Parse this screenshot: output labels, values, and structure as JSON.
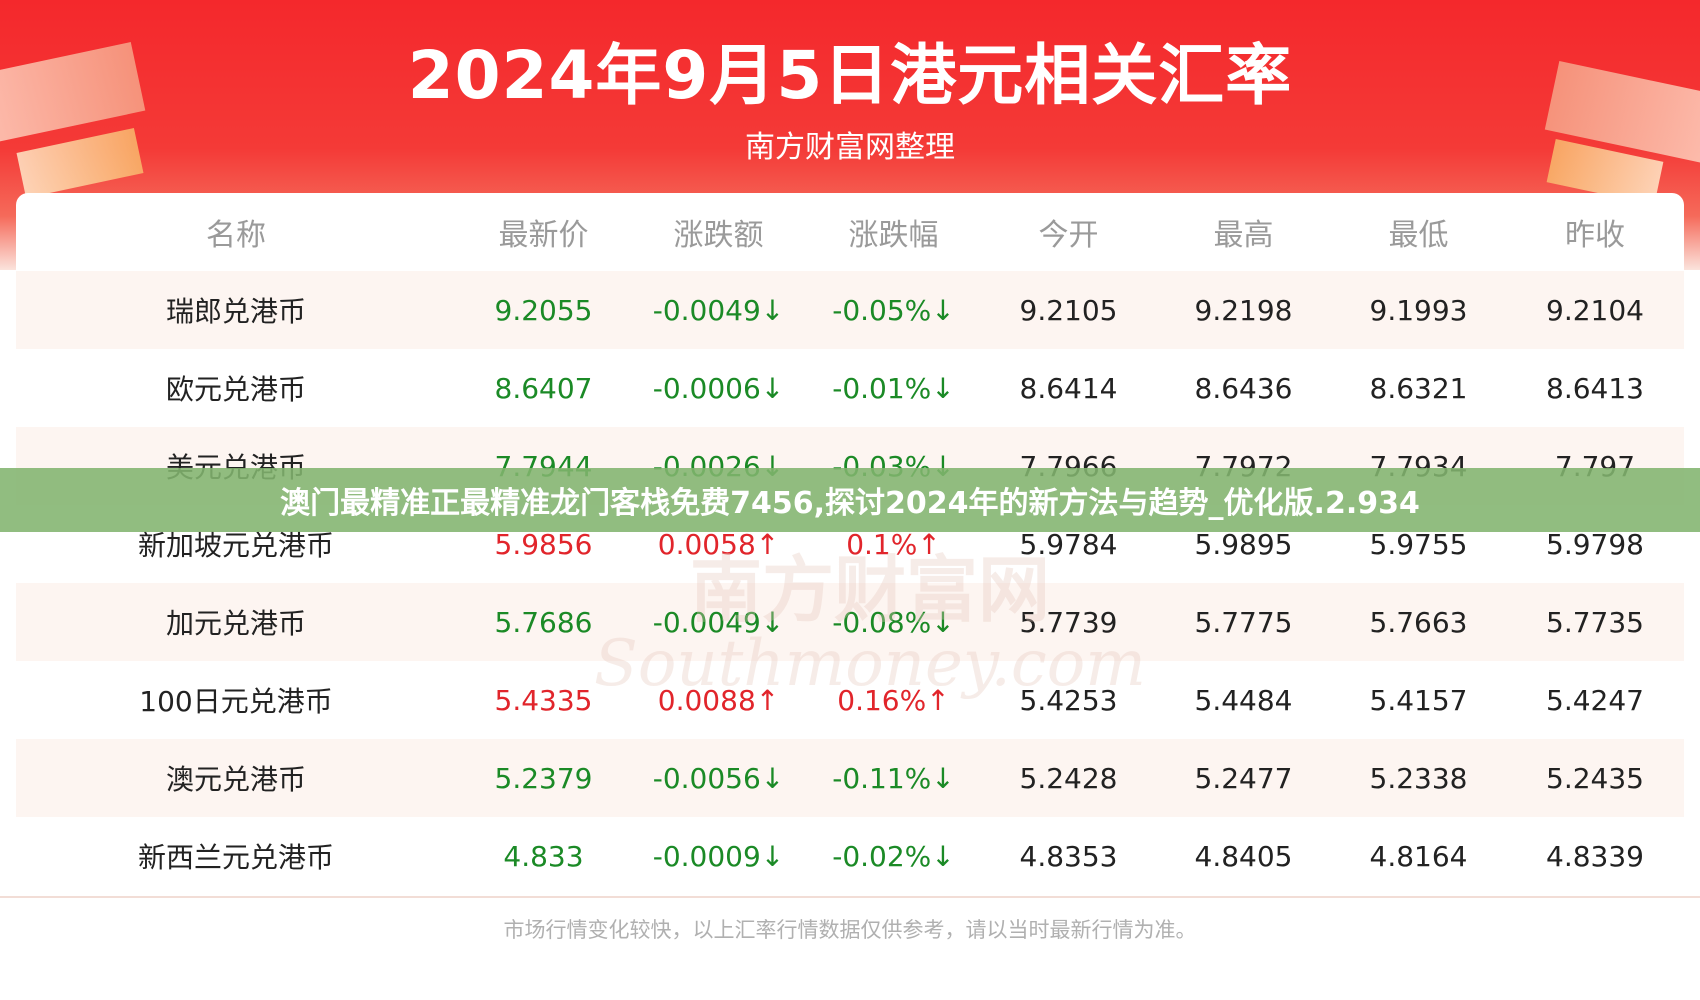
{
  "header": {
    "title": "2024年9月5日港元相关汇率",
    "subtitle": "南方财富网整理"
  },
  "table": {
    "columns": [
      "名称",
      "最新价",
      "涨跌额",
      "涨跌幅",
      "今开",
      "最高",
      "最低",
      "昨收"
    ],
    "rows": [
      {
        "name": "瑞郎兑港币",
        "price": "9.2055",
        "change": "-0.0049↓",
        "pct": "-0.05%↓",
        "open": "9.2105",
        "high": "9.2198",
        "low": "9.1993",
        "prev": "9.2104",
        "trend": "down"
      },
      {
        "name": "欧元兑港币",
        "price": "8.6407",
        "change": "-0.0006↓",
        "pct": "-0.01%↓",
        "open": "8.6414",
        "high": "8.6436",
        "low": "8.6321",
        "prev": "8.6413",
        "trend": "down"
      },
      {
        "name": "美元兑港币",
        "price": "7.7944",
        "change": "-0.0026↓",
        "pct": "-0.03%↓",
        "open": "7.7966",
        "high": "7.7972",
        "low": "7.7934",
        "prev": "7.797",
        "trend": "down"
      },
      {
        "name": "新加坡元兑港币",
        "price": "5.9856",
        "change": "0.0058↑",
        "pct": "0.1%↑",
        "open": "5.9784",
        "high": "5.9895",
        "low": "5.9755",
        "prev": "5.9798",
        "trend": "up"
      },
      {
        "name": "加元兑港币",
        "price": "5.7686",
        "change": "-0.0049↓",
        "pct": "-0.08%↓",
        "open": "5.7739",
        "high": "5.7775",
        "low": "5.7663",
        "prev": "5.7735",
        "trend": "down"
      },
      {
        "name": "100日元兑港币",
        "price": "5.4335",
        "change": "0.0088↑",
        "pct": "0.16%↑",
        "open": "5.4253",
        "high": "5.4484",
        "low": "5.4157",
        "prev": "5.4247",
        "trend": "up"
      },
      {
        "name": "澳元兑港币",
        "price": "5.2379",
        "change": "-0.0056↓",
        "pct": "-0.11%↓",
        "open": "5.2428",
        "high": "5.2477",
        "low": "5.2338",
        "prev": "5.2435",
        "trend": "down"
      },
      {
        "name": "新西兰元兑港币",
        "price": "4.833",
        "change": "-0.0009↓",
        "pct": "-0.02%↓",
        "open": "4.8353",
        "high": "4.8405",
        "low": "4.8164",
        "prev": "4.8339",
        "trend": "down"
      }
    ]
  },
  "footer": {
    "note": "市场行情变化较快，以上汇率行情数据仅供参考，请以当时最新行情为准。"
  },
  "watermark": {
    "cn": "南方财富网",
    "en": "Southmoney.com"
  },
  "banner": {
    "text": "澳门最精准正最精准龙门客栈免费7456,探讨2024年的新方法与趋势_优化版.2.934"
  },
  "colors": {
    "header_red": "#f4282c",
    "down_green": "#1b8a26",
    "up_red": "#e1252b",
    "banner_green": "#82b46e"
  }
}
